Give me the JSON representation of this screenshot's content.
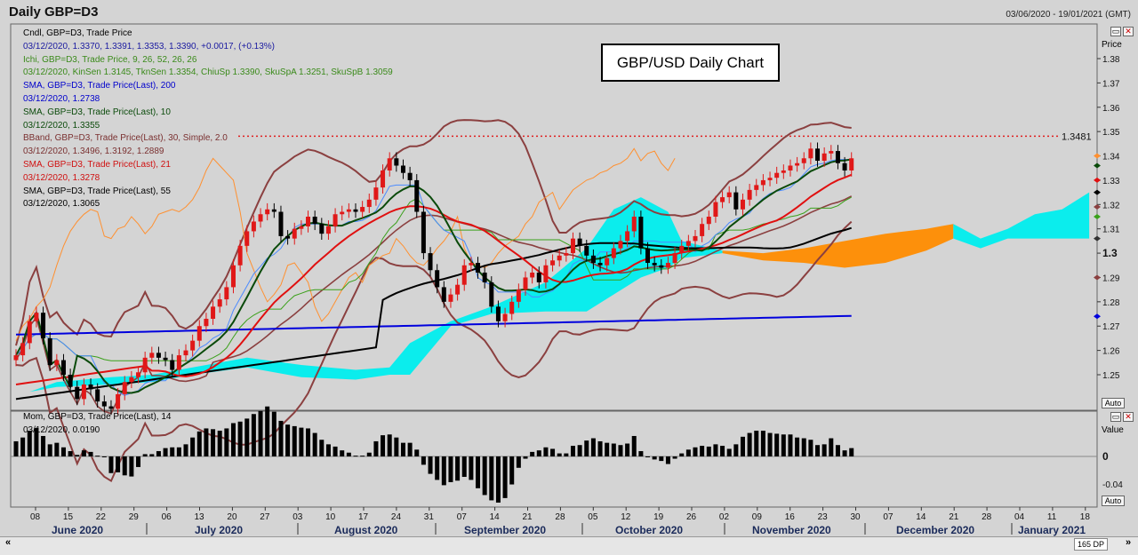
{
  "header": {
    "title": "Daily GBP=D3",
    "date_range": "03/06/2020 - 19/01/2021 (GMT)"
  },
  "annotation": {
    "text": "GBP/USD Daily Chart"
  },
  "legend": [
    {
      "text": "Cndl, GBP=D3, Trade Price",
      "color": "#000000"
    },
    {
      "text": "03/12/2020, 1.3370, 1.3391, 1.3353, 1.3390, +0.0017, (+0.13%)",
      "color": "#1a1aa0"
    },
    {
      "text": "Ichi, GBP=D3, Trade Price, 9, 26, 52, 26, 26",
      "color": "#3a8a1a"
    },
    {
      "text": "03/12/2020, KinSen 1.3145, TknSen 1.3354, ChiuSp 1.3390, SkuSpA 1.3251, SkuSpB 1.3059",
      "color": "#3a8a1a"
    },
    {
      "text": "SMA, GBP=D3, Trade Price(Last), 200",
      "color": "#0000cc"
    },
    {
      "text": "03/12/2020, 1.2738",
      "color": "#0000cc"
    },
    {
      "text": "SMA, GBP=D3, Trade Price(Last), 10",
      "color": "#0a4a0a"
    },
    {
      "text": "03/12/2020, 1.3355",
      "color": "#0a4a0a"
    },
    {
      "text": "BBand, GBP=D3, Trade Price(Last), 30, Simple, 2.0",
      "color": "#7a3030"
    },
    {
      "text": "03/12/2020, 1.3496, 1.3192, 1.2889",
      "color": "#7a3030"
    },
    {
      "text": "SMA, GBP=D3, Trade Price(Last), 21",
      "color": "#d01010"
    },
    {
      "text": "03/12/2020, 1.3278",
      "color": "#d01010"
    },
    {
      "text": "SMA, GBP=D3, Trade Price(Last), 55",
      "color": "#000000"
    },
    {
      "text": "03/12/2020, 1.3065",
      "color": "#000000"
    }
  ],
  "momentum_legend": [
    {
      "text": "Mom, GBP=D3, Trade Price(Last), 14"
    },
    {
      "text": "03/12/2020, 0.0190"
    }
  ],
  "axis": {
    "price_title": "Price",
    "value_title": "Value",
    "auto_label": "Auto",
    "resistance_label": "1.3481",
    "price_ticks": [
      "1.38",
      "1.37",
      "1.36",
      "1.35",
      "1.34",
      "1.33",
      "1.32",
      "1.31",
      "1.3",
      "1.29",
      "1.28",
      "1.27",
      "1.26",
      "1.25"
    ],
    "value_ticks": [
      "0",
      "-0.04"
    ],
    "day_ticks": [
      "08",
      "15",
      "22",
      "29",
      "06",
      "13",
      "20",
      "27",
      "03",
      "10",
      "17",
      "24",
      "31",
      "07",
      "14",
      "21",
      "28",
      "05",
      "12",
      "19",
      "26",
      "02",
      "09",
      "16",
      "23",
      "30",
      "07",
      "14",
      "21",
      "28",
      "04",
      "11",
      "18"
    ],
    "months": [
      "June 2020",
      "July 2020",
      "August 2020",
      "September 2020",
      "October 2020",
      "November 2020",
      "December 2020",
      "January 2021"
    ]
  },
  "status": {
    "dp_label": "165 DP"
  },
  "colors": {
    "background": "#d4d4d4",
    "up": "#e01818",
    "down": "#000000",
    "cloud_bull": "#00eeee",
    "cloud_bear": "#ff8c00",
    "sma200": "#0000dd",
    "sma55": "#000000",
    "sma21": "#e01010",
    "sma10": "#0a4a0a",
    "bband": "#8b4040",
    "kijun": "#3aa01a",
    "tenkan": "#4a8aff",
    "chikou": "#ff9030"
  },
  "chart_data": {
    "type": "candlestick",
    "title": "GBP/USD Daily Chart",
    "ylabel": "Price",
    "ylim": [
      1.24,
      1.38
    ],
    "resistance_level": 1.3481,
    "series_names": [
      "Cndl",
      "Ichi",
      "SMA 200",
      "SMA 10",
      "BBand 30",
      "SMA 21",
      "SMA 55"
    ],
    "last_values": {
      "close": 1.339,
      "kinsen": 1.3145,
      "tknsen": 1.3354,
      "chiusp": 1.339,
      "skuspa": 1.3251,
      "skuspb": 1.3059,
      "sma200": 1.2738,
      "sma10": 1.3355,
      "bb_upper": 1.3496,
      "bb_mid": 1.3192,
      "bb_lower": 1.2889,
      "sma21": 1.3278,
      "sma55": 1.3065
    },
    "momentum": {
      "name": "Mom 14",
      "last": 0.019,
      "ylim": [
        -0.05,
        0.05
      ]
    },
    "closes": [
      1.258,
      1.263,
      1.272,
      1.2755,
      1.265,
      1.254,
      1.256,
      1.25,
      1.245,
      1.24,
      1.246,
      1.244,
      1.239,
      1.237,
      1.236,
      1.242,
      1.247,
      1.249,
      1.251,
      1.257,
      1.259,
      1.257,
      1.256,
      1.252,
      1.258,
      1.26,
      1.264,
      1.27,
      1.273,
      1.278,
      1.281,
      1.286,
      1.295,
      1.303,
      1.309,
      1.313,
      1.316,
      1.318,
      1.317,
      1.307,
      1.306,
      1.31,
      1.311,
      1.315,
      1.312,
      1.308,
      1.311,
      1.316,
      1.317,
      1.318,
      1.317,
      1.319,
      1.322,
      1.327,
      1.334,
      1.339,
      1.336,
      1.333,
      1.33,
      1.317,
      1.3,
      1.293,
      1.286,
      1.28,
      1.283,
      1.287,
      1.295,
      1.296,
      1.292,
      1.288,
      1.278,
      1.272,
      1.275,
      1.28,
      1.285,
      1.29,
      1.292,
      1.288,
      1.295,
      1.297,
      1.299,
      1.3,
      1.306,
      1.303,
      1.299,
      1.296,
      1.295,
      1.298,
      1.302,
      1.305,
      1.309,
      1.315,
      1.302,
      1.296,
      1.295,
      1.294,
      1.296,
      1.3,
      1.303,
      1.305,
      1.307,
      1.312,
      1.315,
      1.321,
      1.323,
      1.325,
      1.318,
      1.322,
      1.326,
      1.328,
      1.33,
      1.331,
      1.333,
      1.334,
      1.336,
      1.337,
      1.339,
      1.343,
      1.338,
      1.341,
      1.342,
      1.337,
      1.334,
      1.339
    ]
  }
}
